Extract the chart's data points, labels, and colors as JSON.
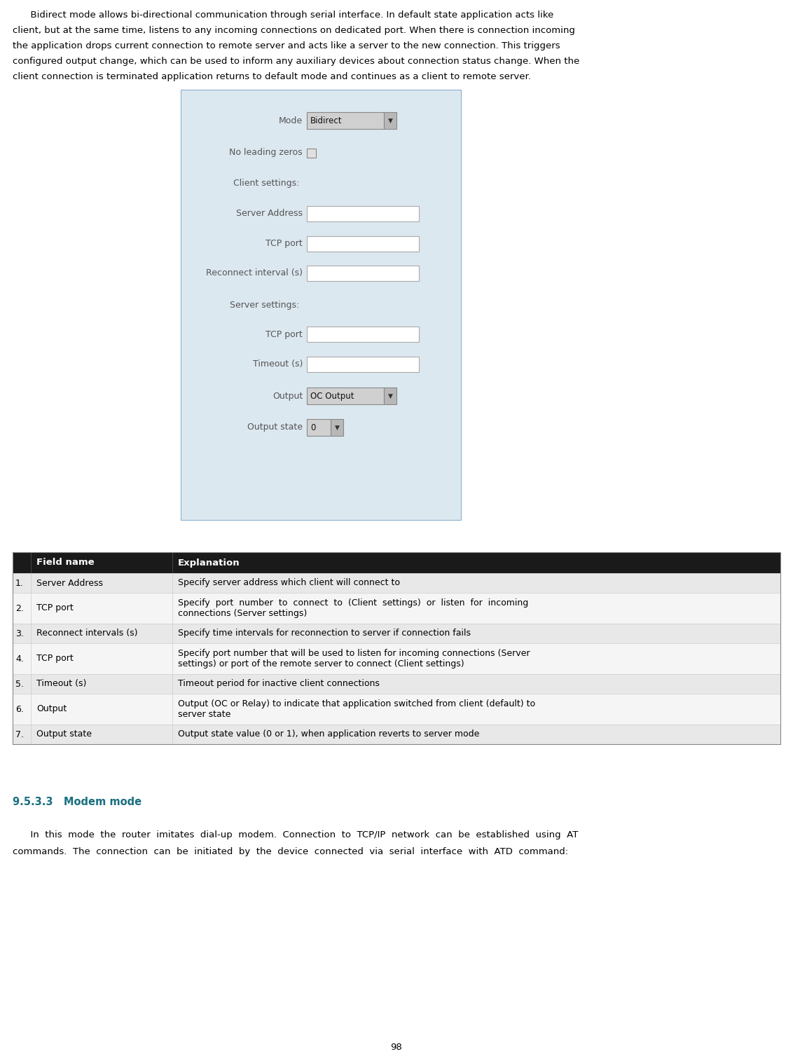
{
  "intro_lines": [
    "      Bidirect mode allows bi-directional communication through serial interface. In default state application acts like",
    "client, but at the same time, listens to any incoming connections on dedicated port. When there is connection incoming",
    "the application drops current connection to remote server and acts like a server to the new connection. This triggers",
    "configured output change, which can be used to inform any auxiliary devices about connection status change. When the",
    "client connection is terminated application returns to default mode and continues as a client to remote server."
  ],
  "table_rows": [
    [
      "1.",
      "Server Address",
      "Specify server address which client will connect to"
    ],
    [
      "2.",
      "TCP port",
      "Specify  port  number  to  connect  to  (Client  settings)  or  listen  for  incoming\nconnections (Server settings)"
    ],
    [
      "3.",
      "Reconnect intervals (s)",
      "Specify time intervals for reconnection to server if connection fails"
    ],
    [
      "4.",
      "TCP port",
      "Specify port number that will be used to listen for incoming connections (Server\nsettings) or port of the remote server to connect (Client settings)"
    ],
    [
      "5.",
      "Timeout (s)",
      "Timeout period for inactive client connections"
    ],
    [
      "6.",
      "Output",
      "Output (OC or Relay) to indicate that application switched from client (default) to\nserver state"
    ],
    [
      "7.",
      "Output state",
      "Output state value (0 or 1), when application reverts to server mode"
    ]
  ],
  "section_title": "9.5.3.3   Modem mode",
  "bottom_text_1": "      In  this  mode  the  router  imitates  dial-up  modem.  Connection  to  TCP/IP  network  can  be  established  using  AT",
  "bottom_text_2": "commands.  The  connection  can  be  initiated  by  the  device  connected  via  serial  interface  with  ATD  command:",
  "page_number": "98",
  "bg_color": "#ffffff",
  "text_color": "#000000",
  "table_header_bg": "#1a1a1a",
  "table_header_fg": "#ffffff",
  "table_row_even_bg": "#e8e8e8",
  "table_row_odd_bg": "#f5f5f5",
  "section_title_color": "#1a7080",
  "input_bg": "#ffffff",
  "input_border": "#aaaaaa",
  "dropdown_bg": "#d0d0d0",
  "form_bg": "#dce8f0"
}
